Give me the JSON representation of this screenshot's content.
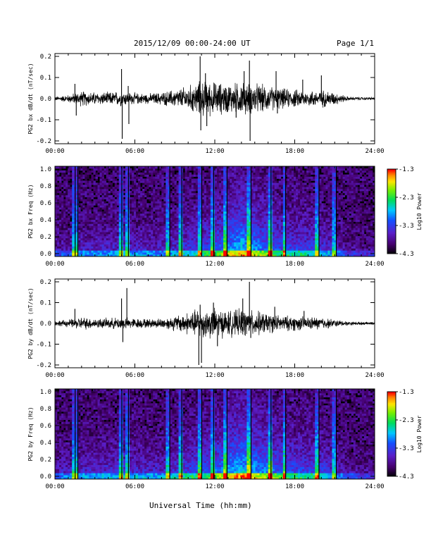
{
  "header": {
    "title": "2015/12/09  00:00-24:00 UT",
    "page": "Page 1/1"
  },
  "footer": {
    "xlabel": "Universal Time (hh:mm)"
  },
  "colorbar": {
    "label": "Log10 Power",
    "ticks": [
      "-1.3",
      "-2.3",
      "-3.3",
      "-4.3"
    ],
    "range": [
      -4.3,
      -1.3
    ]
  },
  "chart_data": [
    {
      "type": "line",
      "ylabel": "PG2 bx dB/dt (nT/sec)",
      "xlim": [
        0,
        24
      ],
      "ylim": [
        -0.2,
        0.2
      ],
      "x_ticks": [
        "00:00",
        "06:00",
        "12:00",
        "18:00",
        "24:00"
      ],
      "y_ticks": [
        "0.2",
        "0.1",
        "0.0",
        "-0.1",
        "-0.2"
      ],
      "envelope": [
        {
          "x": 0,
          "amp": 0.008
        },
        {
          "x": 1,
          "amp": 0.015
        },
        {
          "x": 2,
          "amp": 0.03
        },
        {
          "x": 3,
          "amp": 0.025
        },
        {
          "x": 4,
          "amp": 0.025
        },
        {
          "x": 5,
          "amp": 0.03
        },
        {
          "x": 6,
          "amp": 0.022
        },
        {
          "x": 7,
          "amp": 0.02
        },
        {
          "x": 8,
          "amp": 0.025
        },
        {
          "x": 9,
          "amp": 0.035
        },
        {
          "x": 10,
          "amp": 0.05
        },
        {
          "x": 11,
          "amp": 0.07
        },
        {
          "x": 12,
          "amp": 0.065
        },
        {
          "x": 13,
          "amp": 0.06
        },
        {
          "x": 14,
          "amp": 0.065
        },
        {
          "x": 15,
          "amp": 0.06
        },
        {
          "x": 16,
          "amp": 0.05
        },
        {
          "x": 17,
          "amp": 0.04
        },
        {
          "x": 18,
          "amp": 0.035
        },
        {
          "x": 19,
          "amp": 0.03
        },
        {
          "x": 20,
          "amp": 0.035
        },
        {
          "x": 21,
          "amp": 0.025
        },
        {
          "x": 22,
          "amp": 0.008
        },
        {
          "x": 23,
          "amp": 0.006
        },
        {
          "x": 24,
          "amp": 0.005
        }
      ],
      "spikes": [
        {
          "x": 1.5,
          "y": 0.07
        },
        {
          "x": 1.6,
          "y": -0.08
        },
        {
          "x": 5.0,
          "y": 0.14
        },
        {
          "x": 5.05,
          "y": -0.19
        },
        {
          "x": 5.5,
          "y": 0.06
        },
        {
          "x": 5.55,
          "y": -0.12
        },
        {
          "x": 10.9,
          "y": 0.2
        },
        {
          "x": 10.95,
          "y": -0.15
        },
        {
          "x": 11.3,
          "y": 0.12
        },
        {
          "x": 11.4,
          "y": -0.13
        },
        {
          "x": 14.2,
          "y": 0.13
        },
        {
          "x": 14.6,
          "y": 0.18
        },
        {
          "x": 14.65,
          "y": -0.2
        },
        {
          "x": 13.6,
          "y": -0.09
        },
        {
          "x": 16.6,
          "y": 0.13
        },
        {
          "x": 16.7,
          "y": -0.07
        },
        {
          "x": 18.6,
          "y": 0.09
        },
        {
          "x": 20.0,
          "y": 0.11
        }
      ]
    },
    {
      "type": "heatmap",
      "ylabel": "PG2 bx Freq (Hz)",
      "xlim": [
        0,
        24
      ],
      "ylim": [
        0.0,
        1.0
      ],
      "x_ticks": [
        "00:00",
        "06:00",
        "12:00",
        "18:00",
        "24:00"
      ],
      "y_ticks": [
        "1.0",
        "0.8",
        "0.6",
        "0.4",
        "0.2",
        "0.0"
      ],
      "activity": [
        {
          "x": 0,
          "level": 0.2
        },
        {
          "x": 2,
          "level": 0.3
        },
        {
          "x": 5,
          "level": 0.35
        },
        {
          "x": 8,
          "level": 0.3
        },
        {
          "x": 10,
          "level": 0.45
        },
        {
          "x": 12,
          "level": 0.6
        },
        {
          "x": 14,
          "level": 0.9
        },
        {
          "x": 15,
          "level": 0.75
        },
        {
          "x": 17,
          "level": 0.55
        },
        {
          "x": 20,
          "level": 0.45
        },
        {
          "x": 22,
          "level": 0.15
        },
        {
          "x": 24,
          "level": 0.1
        }
      ],
      "bursts": [
        1.4,
        1.6,
        4.9,
        5.4,
        8.5,
        9.4,
        10.9,
        11.8,
        12.8,
        14.6,
        16.1,
        17.2,
        19.7,
        21.0
      ]
    },
    {
      "type": "line",
      "ylabel": "PG2 by dB/dt (nT/sec)",
      "xlim": [
        0,
        24
      ],
      "ylim": [
        -0.2,
        0.2
      ],
      "x_ticks": [
        "00:00",
        "06:00",
        "12:00",
        "18:00",
        "24:00"
      ],
      "y_ticks": [
        "0.2",
        "0.1",
        "0.0",
        "-0.1",
        "-0.2"
      ],
      "envelope": [
        {
          "x": 0,
          "amp": 0.01
        },
        {
          "x": 1,
          "amp": 0.015
        },
        {
          "x": 2,
          "amp": 0.025
        },
        {
          "x": 3,
          "amp": 0.02
        },
        {
          "x": 4,
          "amp": 0.02
        },
        {
          "x": 5,
          "amp": 0.025
        },
        {
          "x": 6,
          "amp": 0.02
        },
        {
          "x": 7,
          "amp": 0.018
        },
        {
          "x": 8,
          "amp": 0.02
        },
        {
          "x": 9,
          "amp": 0.03
        },
        {
          "x": 10,
          "amp": 0.045
        },
        {
          "x": 11,
          "amp": 0.06
        },
        {
          "x": 12,
          "amp": 0.06
        },
        {
          "x": 13,
          "amp": 0.05
        },
        {
          "x": 14,
          "amp": 0.055
        },
        {
          "x": 15,
          "amp": 0.05
        },
        {
          "x": 16,
          "amp": 0.04
        },
        {
          "x": 17,
          "amp": 0.03
        },
        {
          "x": 18,
          "amp": 0.03
        },
        {
          "x": 19,
          "amp": 0.025
        },
        {
          "x": 20,
          "amp": 0.025
        },
        {
          "x": 21,
          "amp": 0.015
        },
        {
          "x": 22,
          "amp": 0.008
        },
        {
          "x": 23,
          "amp": 0.006
        },
        {
          "x": 24,
          "amp": 0.005
        }
      ],
      "spikes": [
        {
          "x": 1.5,
          "y": 0.07
        },
        {
          "x": 5.0,
          "y": 0.12
        },
        {
          "x": 5.4,
          "y": 0.17
        },
        {
          "x": 5.1,
          "y": -0.09
        },
        {
          "x": 10.8,
          "y": -0.2
        },
        {
          "x": 11.0,
          "y": -0.19
        },
        {
          "x": 10.9,
          "y": 0.09
        },
        {
          "x": 11.9,
          "y": 0.1
        },
        {
          "x": 12.2,
          "y": -0.11
        },
        {
          "x": 14.6,
          "y": 0.2
        },
        {
          "x": 14.1,
          "y": 0.12
        },
        {
          "x": 14.7,
          "y": -0.07
        },
        {
          "x": 16.5,
          "y": 0.08
        },
        {
          "x": 18.7,
          "y": 0.06
        }
      ]
    },
    {
      "type": "heatmap",
      "ylabel": "PG2 by Freq (Hz)",
      "xlim": [
        0,
        24
      ],
      "ylim": [
        0.0,
        1.0
      ],
      "x_ticks": [
        "00:00",
        "06:00",
        "12:00",
        "18:00",
        "24:00"
      ],
      "y_ticks": [
        "1.0",
        "0.8",
        "0.6",
        "0.4",
        "0.2",
        "0.0"
      ],
      "activity": [
        {
          "x": 0,
          "level": 0.25
        },
        {
          "x": 2,
          "level": 0.35
        },
        {
          "x": 5,
          "level": 0.4
        },
        {
          "x": 8,
          "level": 0.35
        },
        {
          "x": 10,
          "level": 0.5
        },
        {
          "x": 12,
          "level": 0.65
        },
        {
          "x": 14,
          "level": 0.95
        },
        {
          "x": 15,
          "level": 0.8
        },
        {
          "x": 17,
          "level": 0.6
        },
        {
          "x": 20,
          "level": 0.5
        },
        {
          "x": 22,
          "level": 0.2
        },
        {
          "x": 24,
          "level": 0.12
        }
      ],
      "bursts": [
        1.4,
        1.6,
        4.9,
        5.4,
        8.5,
        9.4,
        10.9,
        11.8,
        12.8,
        14.6,
        16.1,
        17.2,
        19.7,
        21.0
      ]
    }
  ]
}
